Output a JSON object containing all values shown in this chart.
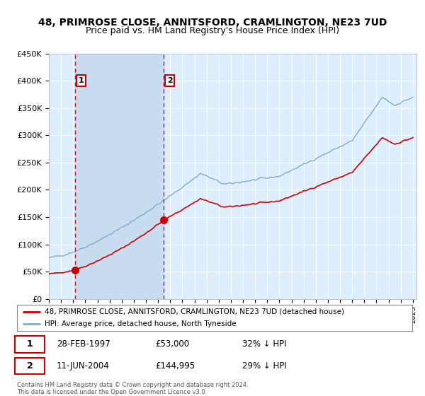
{
  "title": "48, PRIMROSE CLOSE, ANNITSFORD, CRAMLINGTON, NE23 7UD",
  "subtitle": "Price paid vs. HM Land Registry's House Price Index (HPI)",
  "legend_line1": "48, PRIMROSE CLOSE, ANNITSFORD, CRAMLINGTON, NE23 7UD (detached house)",
  "legend_line2": "HPI: Average price, detached house, North Tyneside",
  "footer": "Contains HM Land Registry data © Crown copyright and database right 2024.\nThis data is licensed under the Open Government Licence v3.0.",
  "sale1_date": 1997.15,
  "sale1_price": 53000,
  "sale1_label": "28-FEB-1997",
  "sale1_amount": "£53,000",
  "sale1_hpi": "32% ↓ HPI",
  "sale2_date": 2004.44,
  "sale2_price": 144995,
  "sale2_label": "11-JUN-2004",
  "sale2_amount": "£144,995",
  "sale2_hpi": "29% ↓ HPI",
  "ymax": 450000,
  "hpi_color": "#7aadd4",
  "price_color": "#cc0000",
  "bg_color": "#ddeeff",
  "shade_color": "#c8dcf0"
}
